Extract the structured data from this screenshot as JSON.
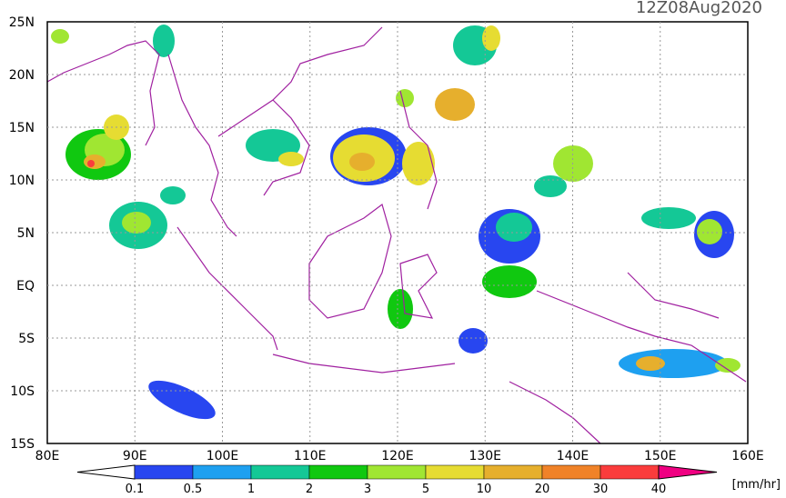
{
  "title": "12Z08Aug2020",
  "lat_labels": [
    "25N",
    "20N",
    "15N",
    "10N",
    "5N",
    "EQ",
    "5S",
    "10S",
    "15S"
  ],
  "lon_labels": [
    "80E",
    "90E",
    "100E",
    "110E",
    "120E",
    "130E",
    "140E",
    "150E",
    "160E"
  ],
  "colorbar": {
    "levels": [
      0.1,
      0.5,
      1,
      2,
      3,
      5,
      10,
      20,
      30,
      40
    ],
    "colors": [
      "#ffffff",
      "#2846f0",
      "#1ea0f0",
      "#14c896",
      "#10c810",
      "#a0e632",
      "#e6dc32",
      "#e6af2d",
      "#f08228",
      "#fa3c3c",
      "#f00082"
    ],
    "unit": "[mm/hr]"
  }
}
